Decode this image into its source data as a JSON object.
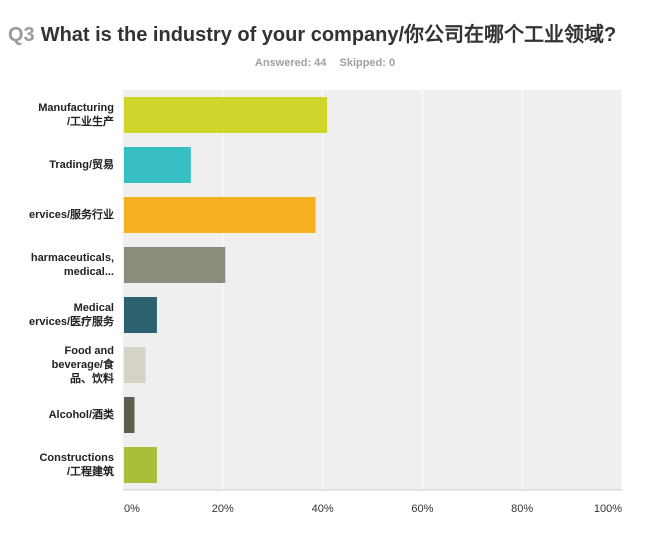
{
  "question": {
    "number": "Q3",
    "title": "What is the industry of your company/你公司在哪个工业领域?"
  },
  "stats": {
    "answered": "Answered: 44",
    "skipped": "Skipped: 0"
  },
  "chart_data": {
    "type": "bar",
    "orientation": "horizontal",
    "categories": [
      [
        "Manufacturing",
        "/工业生产"
      ],
      [
        "Trading/贸易"
      ],
      [
        "ervices/服务行业"
      ],
      [
        "harmaceuticals,",
        "medical..."
      ],
      [
        "Medical",
        "ervices/医疗服务"
      ],
      [
        "Food and",
        "beverage/食",
        "品、饮料"
      ],
      [
        "Alcohol/酒类"
      ],
      [
        "Constructions",
        "/工程建筑"
      ]
    ],
    "values": [
      40.9,
      13.6,
      38.6,
      20.5,
      6.8,
      4.5,
      2.3,
      6.8
    ],
    "colors": [
      "#cfd52a",
      "#38bfc3",
      "#f8b020",
      "#8c8c7c",
      "#2c6270",
      "#d5d3c5",
      "#5d5d4d",
      "#a9bf3c"
    ],
    "xlim": [
      0,
      100
    ],
    "xticks": [
      "0%",
      "20%",
      "40%",
      "60%",
      "80%",
      "100%"
    ],
    "grid": true,
    "xlabel": "",
    "ylabel": ""
  }
}
